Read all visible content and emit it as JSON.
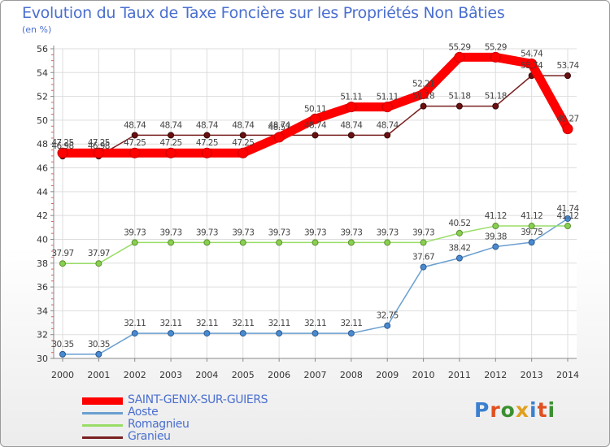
{
  "header": {
    "title": "Evolution du Taux de Taxe Foncière sur les Propriétés Non Bâties",
    "unit": "(en %)"
  },
  "branding": {
    "logo_text": "Proxiti"
  },
  "chart_data": {
    "type": "line",
    "title": "Evolution du Taux de Taxe Foncière sur les Propriétés Non Bâties",
    "ylabel": "(en %)",
    "xlabel": "",
    "x": [
      "2000",
      "2001",
      "2002",
      "2003",
      "2004",
      "2005",
      "2006",
      "2007",
      "2008",
      "2009",
      "2010",
      "2011",
      "2012",
      "2013",
      "2014"
    ],
    "ylim": [
      30,
      56
    ],
    "yticks": [
      30,
      32,
      34,
      36,
      38,
      40,
      42,
      44,
      46,
      48,
      50,
      52,
      54,
      56
    ],
    "grid": true,
    "legend_position": "bottom-left",
    "series": [
      {
        "name": "SAINT-GENIX-SUR-GUIERS",
        "color": "#ff0000",
        "values": [
          47.25,
          47.25,
          47.25,
          47.25,
          47.25,
          47.25,
          48.57,
          50.11,
          51.11,
          51.11,
          52.21,
          55.29,
          55.29,
          54.74,
          49.27
        ],
        "labels": [
          "47.25",
          "47.25",
          "47.25",
          "47.25",
          "47.25",
          "47.25",
          "48.57",
          "50.11",
          "51.11",
          "51.11",
          "52.21",
          "55.29",
          "55.29",
          "54.74",
          "49.27"
        ]
      },
      {
        "name": "Aoste",
        "color": "#6a9fd0",
        "values": [
          30.35,
          30.35,
          32.11,
          32.11,
          32.11,
          32.11,
          32.11,
          32.11,
          32.11,
          32.75,
          37.67,
          38.42,
          39.38,
          39.75,
          41.74
        ],
        "labels": [
          "30.35",
          "30.35",
          "32.11",
          "32.11",
          "32.11",
          "32.11",
          "32.11",
          "32.11",
          "32.11",
          "32.75",
          "37.67",
          "38.42",
          "39.38",
          "39.75",
          "41.74"
        ]
      },
      {
        "name": "Romagnieu",
        "color": "#99dd66",
        "values": [
          37.97,
          37.97,
          39.73,
          39.73,
          39.73,
          39.73,
          39.73,
          39.73,
          39.73,
          39.73,
          39.73,
          40.52,
          41.12,
          41.12,
          41.12
        ],
        "labels": [
          "37.97",
          "37.97",
          "39.73",
          "39.73",
          "39.73",
          "39.73",
          "39.73",
          "39.73",
          "39.73",
          "39.73",
          "39.73",
          "40.52",
          "41.12",
          "41.12",
          "41.12"
        ]
      },
      {
        "name": "Granieu",
        "color": "#7a2020",
        "values": [
          46.98,
          46.98,
          48.74,
          48.74,
          48.74,
          48.74,
          48.74,
          48.74,
          48.74,
          48.74,
          51.18,
          51.18,
          51.18,
          53.74,
          53.74
        ],
        "labels": [
          "46.98",
          "46.98",
          "48.74",
          "48.74",
          "48.74",
          "48.74",
          "48.74",
          "48.74",
          "48.74",
          "48.74",
          "51.18",
          "51.18",
          "51.18",
          "53.74",
          "53.74"
        ]
      }
    ]
  }
}
